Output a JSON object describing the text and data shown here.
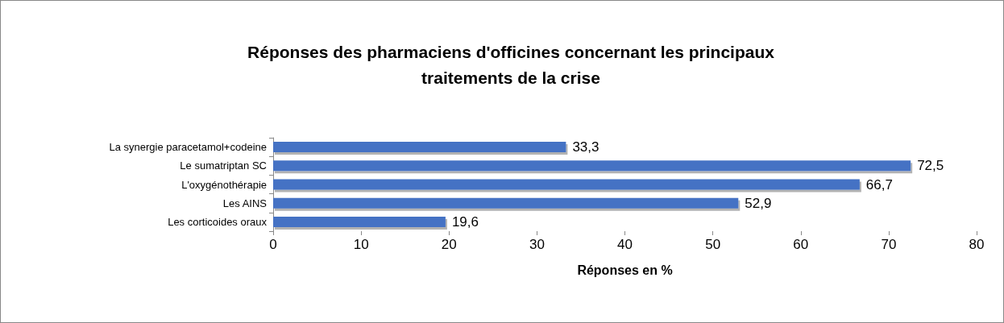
{
  "chart_data": {
    "type": "bar",
    "orientation": "horizontal",
    "title": "Réponses des pharmaciens d'officines concernant les principaux\ntraitements de la crise",
    "xlabel": "Réponses en %",
    "categories": [
      "La synergie paracetamol+codeine",
      "Le sumatriptan SC",
      "L'oxygénothérapie",
      "Les AINS",
      "Les corticoides oraux"
    ],
    "values": [
      33.3,
      72.5,
      66.7,
      52.9,
      19.6
    ],
    "value_labels": [
      "33,3",
      "72,5",
      "66,7",
      "52,9",
      "19,6"
    ],
    "color": "#4472c4",
    "xlim": [
      0,
      80
    ],
    "xticks": [
      0,
      10,
      20,
      30,
      40,
      50,
      60,
      70,
      80
    ],
    "grid": false
  }
}
